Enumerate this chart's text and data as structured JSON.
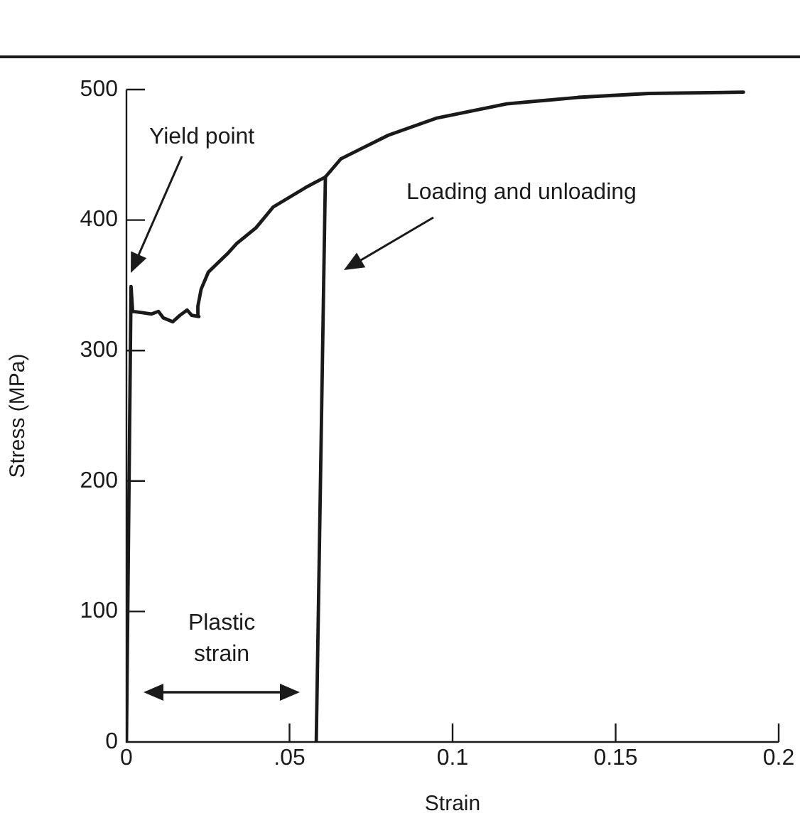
{
  "chart_data": {
    "type": "line",
    "xlabel": "Strain",
    "ylabel": "Stress (MPa)",
    "xlim": [
      0,
      0.2
    ],
    "xticks": [
      0,
      {
        "value": 0.05,
        "label": ".05"
      },
      0.1,
      0.15,
      0.2
    ],
    "ylim": [
      0,
      500
    ],
    "yticks": [
      0,
      100,
      200,
      300,
      400,
      500
    ],
    "grid": false,
    "legend": false,
    "marker": "none",
    "line_style": "solid",
    "annotations": [
      "Yield point",
      "Loading and unloading",
      "Plastic strain"
    ],
    "series": [
      {
        "color": "#1a1a1a",
        "x": [
          0,
          0.0014,
          0.0019,
          0.0048,
          0.0077,
          0.0098,
          0.0113,
          0.0142,
          0.0164,
          0.0186,
          0.02,
          0.0222,
          0.0219,
          0.0229,
          0.0251,
          0.0288,
          0.0309,
          0.0338,
          0.0397,
          0.045,
          0.055,
          0.061,
          0.0658,
          0.0803,
          0.0949,
          0.1166,
          0.1384,
          0.1602,
          0.1892
        ],
        "values": [
          0,
          349,
          330,
          329,
          328,
          330,
          325,
          322,
          327,
          331,
          327,
          326,
          334,
          347,
          360,
          369,
          374,
          382,
          394,
          410,
          425,
          433,
          447,
          465,
          478,
          489,
          494,
          497,
          498
        ]
      },
      {
        "color": "#1a1a1a",
        "x": [
          0.0582,
          0.061
        ],
        "values": [
          0,
          433
        ]
      }
    ]
  }
}
